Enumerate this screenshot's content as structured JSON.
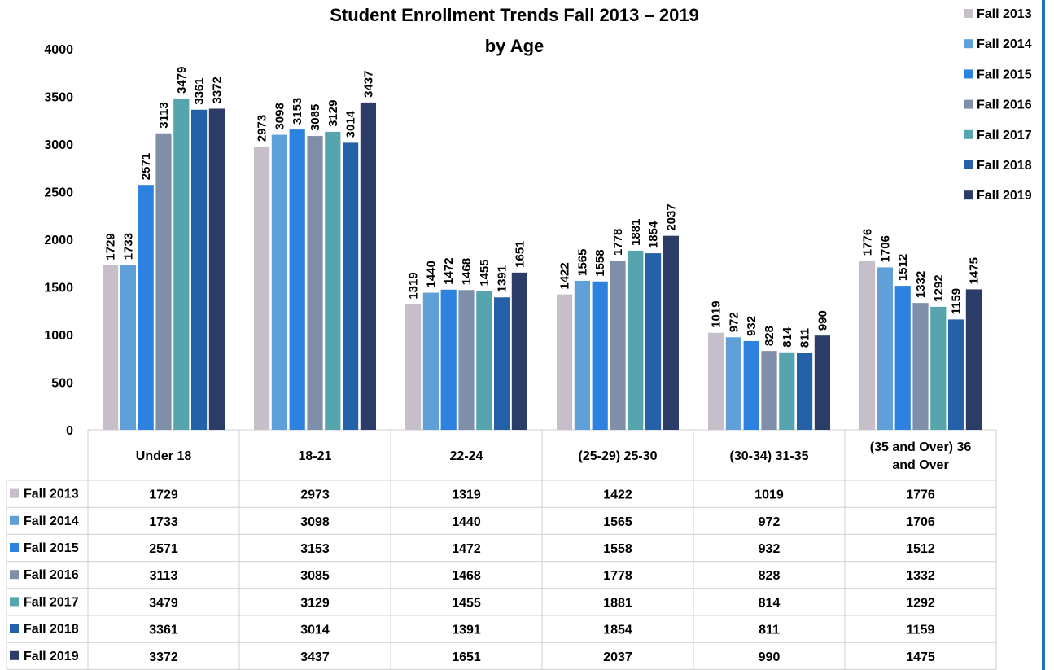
{
  "chart_data": {
    "type": "bar",
    "title": "Student Enrollment Trends Fall 2013 – 2019",
    "subtitle": "by Age",
    "ylim": [
      0,
      4000
    ],
    "yticks": [
      0,
      500,
      1000,
      1500,
      2000,
      2500,
      3000,
      3500,
      4000
    ],
    "categories": [
      "Under 18",
      "18-21",
      "22-24",
      "(25-29) 25-30",
      "(30-34) 31-35",
      "(35 and Over) 36 and Over"
    ],
    "legend_position": "top-right",
    "data_table": true,
    "series": [
      {
        "name": "Fall 2013",
        "color": "#c6bfc9",
        "values": [
          1729,
          2973,
          1319,
          1422,
          1019,
          1776
        ]
      },
      {
        "name": "Fall 2014",
        "color": "#5fa0d8",
        "values": [
          1733,
          3098,
          1440,
          1565,
          972,
          1706
        ]
      },
      {
        "name": "Fall 2015",
        "color": "#2c82de",
        "values": [
          2571,
          3153,
          1472,
          1558,
          932,
          1512
        ]
      },
      {
        "name": "Fall 2016",
        "color": "#7f8fa9",
        "values": [
          3113,
          3085,
          1468,
          1778,
          828,
          1332
        ]
      },
      {
        "name": "Fall 2017",
        "color": "#56a4ae",
        "values": [
          3479,
          3129,
          1455,
          1881,
          814,
          1292
        ]
      },
      {
        "name": "Fall 2018",
        "color": "#2461a8",
        "values": [
          3361,
          3014,
          1391,
          1854,
          811,
          1159
        ]
      },
      {
        "name": "Fall 2019",
        "color": "#2b3d66",
        "values": [
          3372,
          3437,
          1651,
          2037,
          990,
          1475
        ]
      }
    ]
  },
  "frame": {
    "edge_color": "#1f73b2"
  }
}
